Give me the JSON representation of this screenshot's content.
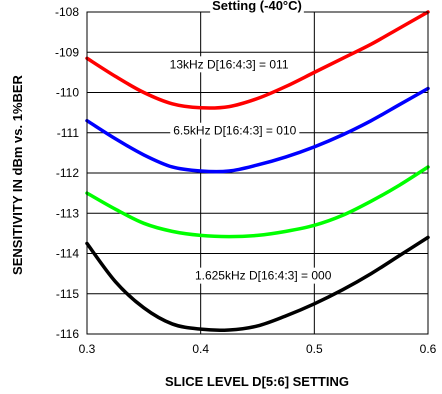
{
  "chart_data": {
    "type": "line",
    "title": "Setting (-40°C)",
    "xlabel": "SLICE LEVEL D[5:6] SETTING",
    "ylabel": "SENSITIVITY IN dBm vs. 1%BER",
    "xlim": [
      0.3,
      0.6
    ],
    "ylim": [
      -116,
      -108
    ],
    "x_ticks": [
      0.3,
      0.4,
      0.5,
      0.6
    ],
    "x_tick_labels": [
      "0.3",
      "0.4",
      "0.5",
      "0.6"
    ],
    "y_ticks": [
      -116,
      -115,
      -114,
      -113,
      -112,
      -111,
      -110,
      -109,
      -108
    ],
    "y_tick_labels": [
      "-116",
      "-115",
      "-114",
      "-113",
      "-112",
      "-111",
      "-110",
      "-109",
      "-108"
    ],
    "grid": true,
    "series": [
      {
        "color": "#ff0000",
        "x": [
          0.3,
          0.325,
          0.35,
          0.375,
          0.4,
          0.425,
          0.45,
          0.475,
          0.5,
          0.525,
          0.55,
          0.575,
          0.6
        ],
        "y": [
          -109.15,
          -109.6,
          -110.0,
          -110.28,
          -110.38,
          -110.35,
          -110.15,
          -109.85,
          -109.5,
          -109.15,
          -108.8,
          -108.4,
          -108.0
        ]
      },
      {
        "color": "#0000ff",
        "x": [
          0.3,
          0.325,
          0.35,
          0.375,
          0.4,
          0.425,
          0.45,
          0.475,
          0.5,
          0.525,
          0.55,
          0.575,
          0.6
        ],
        "y": [
          -110.7,
          -111.15,
          -111.55,
          -111.85,
          -111.95,
          -111.95,
          -111.8,
          -111.6,
          -111.35,
          -111.05,
          -110.7,
          -110.3,
          -109.9
        ]
      },
      {
        "color": "#00ff00",
        "x": [
          0.3,
          0.325,
          0.35,
          0.375,
          0.4,
          0.425,
          0.45,
          0.475,
          0.5,
          0.525,
          0.55,
          0.575,
          0.6
        ],
        "y": [
          -112.5,
          -112.9,
          -113.25,
          -113.45,
          -113.55,
          -113.58,
          -113.55,
          -113.45,
          -113.3,
          -113.05,
          -112.7,
          -112.3,
          -111.85
        ]
      },
      {
        "color": "#000000",
        "x": [
          0.3,
          0.325,
          0.35,
          0.375,
          0.4,
          0.425,
          0.45,
          0.475,
          0.5,
          0.525,
          0.55,
          0.575,
          0.6
        ],
        "y": [
          -113.75,
          -114.7,
          -115.35,
          -115.75,
          -115.88,
          -115.9,
          -115.8,
          -115.55,
          -115.25,
          -114.9,
          -114.5,
          -114.05,
          -113.6
        ]
      }
    ],
    "annotations": [
      {
        "text": "13kHz D[16:4:3] = 011",
        "x": 0.425,
        "y": -109.3
      },
      {
        "text": "6.5kHz D[16:4:3] = 010",
        "x": 0.43,
        "y": -110.95
      },
      {
        "text": "1.625kHz D[16:4:3] = 000",
        "x": 0.455,
        "y": -114.55
      }
    ]
  }
}
